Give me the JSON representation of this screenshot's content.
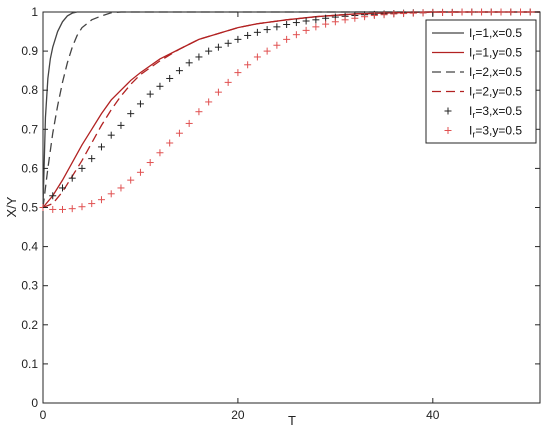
{
  "chart_data": {
    "type": "line",
    "xlabel": "T",
    "ylabel": "X/Y",
    "xlim": [
      0,
      51
    ],
    "ylim": [
      0,
      1
    ],
    "xticks": [
      0,
      20,
      40
    ],
    "yticks": [
      0,
      0.1,
      0.2,
      0.3,
      0.4,
      0.5,
      0.6,
      0.7,
      0.8,
      0.9,
      1
    ],
    "xtick_labels": [
      "0",
      "20",
      "40"
    ],
    "ytick_labels": [
      "0",
      "0.1",
      "0.2",
      "0.3",
      "0.4",
      "0.5",
      "0.6",
      "0.7",
      "0.8",
      "0.9",
      "1"
    ],
    "grid": false,
    "legend_position": "top-right",
    "series": [
      {
        "label_main": "I",
        "label_sub": "r",
        "label_rest": "=1,x=0.5",
        "style": "solid",
        "color": "#444444",
        "x": [
          0,
          0.25,
          0.5,
          0.75,
          1,
          1.5,
          2,
          2.5,
          3,
          3.5,
          4,
          6,
          51
        ],
        "y": [
          0.5,
          0.73,
          0.83,
          0.88,
          0.91,
          0.95,
          0.975,
          0.99,
          0.997,
          1,
          1,
          1,
          1
        ]
      },
      {
        "label_main": "I",
        "label_sub": "r",
        "label_rest": "=1,y=0.5",
        "style": "solid",
        "color": "#b22222",
        "x": [
          0,
          1,
          2,
          3,
          4,
          5,
          6,
          7,
          8,
          9,
          10,
          12,
          14,
          16,
          18,
          20,
          22,
          25,
          28,
          32,
          36,
          40,
          51
        ],
        "y": [
          0.5,
          0.53,
          0.57,
          0.615,
          0.66,
          0.7,
          0.74,
          0.775,
          0.8,
          0.825,
          0.845,
          0.88,
          0.905,
          0.93,
          0.945,
          0.96,
          0.97,
          0.98,
          0.988,
          0.995,
          0.998,
          1,
          1
        ]
      },
      {
        "label_main": "I",
        "label_sub": "r",
        "label_rest": "=2,x=0.5",
        "style": "dashed",
        "color": "#444444",
        "x": [
          0,
          0.5,
          1,
          1.5,
          2,
          2.5,
          3,
          3.5,
          4,
          5,
          6,
          7,
          8,
          51
        ],
        "y": [
          0.5,
          0.6,
          0.69,
          0.76,
          0.82,
          0.87,
          0.91,
          0.94,
          0.96,
          0.98,
          0.99,
          0.998,
          1,
          1
        ]
      },
      {
        "label_main": "I",
        "label_sub": "r",
        "label_rest": "=2,y=0.5",
        "style": "dashed",
        "color": "#b22222",
        "x": [
          0,
          1,
          2,
          3,
          4,
          5,
          6,
          7,
          8,
          9,
          10,
          12,
          14,
          16,
          18,
          20,
          22,
          25,
          28,
          32,
          36,
          40,
          51
        ],
        "y": [
          0.5,
          0.51,
          0.54,
          0.58,
          0.62,
          0.665,
          0.71,
          0.75,
          0.785,
          0.815,
          0.84,
          0.875,
          0.905,
          0.93,
          0.945,
          0.96,
          0.97,
          0.98,
          0.988,
          0.995,
          0.998,
          1,
          1
        ]
      },
      {
        "label_main": "I",
        "label_sub": "r",
        "label_rest": "=3,x=0.5",
        "style": "plus",
        "color": "#222222",
        "x": [
          0,
          1,
          2,
          3,
          4,
          5,
          6,
          7,
          8,
          9,
          10,
          11,
          12,
          13,
          14,
          15,
          16,
          17,
          18,
          19,
          20,
          21,
          22,
          23,
          24,
          25,
          26,
          27,
          28,
          29,
          30,
          31,
          32,
          33,
          34,
          35,
          36,
          37,
          38,
          39,
          40,
          41,
          42,
          43,
          44,
          45,
          46,
          47,
          48,
          49,
          50
        ],
        "y": [
          0.5,
          0.53,
          0.55,
          0.575,
          0.6,
          0.625,
          0.655,
          0.685,
          0.71,
          0.74,
          0.765,
          0.79,
          0.81,
          0.83,
          0.85,
          0.87,
          0.885,
          0.9,
          0.91,
          0.92,
          0.93,
          0.94,
          0.948,
          0.955,
          0.962,
          0.968,
          0.973,
          0.977,
          0.98,
          0.984,
          0.987,
          0.989,
          0.991,
          0.993,
          0.994,
          0.995,
          0.996,
          0.997,
          0.998,
          0.998,
          0.999,
          0.999,
          0.999,
          1,
          1,
          1,
          1,
          1,
          1,
          1,
          1
        ]
      },
      {
        "label_main": "I",
        "label_sub": "r",
        "label_rest": "=3,y=0.5",
        "style": "plus",
        "color": "#e05050",
        "x": [
          0,
          1,
          2,
          3,
          4,
          5,
          6,
          7,
          8,
          9,
          10,
          11,
          12,
          13,
          14,
          15,
          16,
          17,
          18,
          19,
          20,
          21,
          22,
          23,
          24,
          25,
          26,
          27,
          28,
          29,
          30,
          31,
          32,
          33,
          34,
          35,
          36,
          37,
          38,
          39,
          40,
          41,
          42,
          43,
          44,
          45,
          46,
          47,
          48,
          49,
          50
        ],
        "y": [
          0.5,
          0.495,
          0.495,
          0.497,
          0.502,
          0.51,
          0.52,
          0.535,
          0.55,
          0.57,
          0.59,
          0.615,
          0.64,
          0.665,
          0.69,
          0.715,
          0.745,
          0.77,
          0.795,
          0.82,
          0.845,
          0.865,
          0.885,
          0.9,
          0.915,
          0.93,
          0.942,
          0.953,
          0.962,
          0.969,
          0.975,
          0.98,
          0.984,
          0.988,
          0.991,
          0.993,
          0.995,
          0.996,
          0.997,
          0.998,
          0.999,
          0.999,
          0.999,
          1,
          1,
          1,
          1,
          1,
          1,
          1,
          1
        ]
      }
    ]
  }
}
